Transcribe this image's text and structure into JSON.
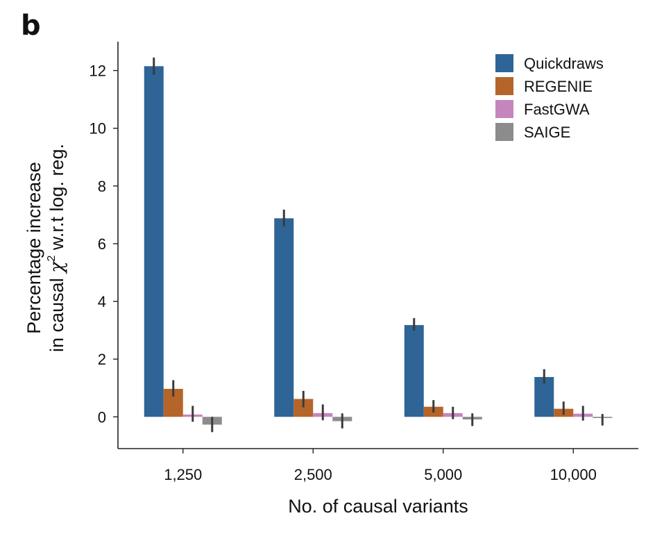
{
  "panel_label": "b",
  "chart_data": {
    "type": "bar",
    "categories": [
      "1,250",
      "2,500",
      "5,000",
      "10,000"
    ],
    "xlabel": "No. of causal variants",
    "ylabel_line1": "Percentage increase",
    "ylabel_line2_prefix": "in causal ",
    "ylabel_symbol": "χ",
    "ylabel_superscript": "2",
    "ylabel_line2_suffix": " w.r.t log. reg.",
    "ylim": [
      -1.1,
      13.0
    ],
    "yticks": [
      0,
      2,
      4,
      6,
      8,
      10,
      12
    ],
    "ytick_labels": [
      "0",
      "2",
      "4",
      "6",
      "8",
      "10",
      "12"
    ],
    "grid": false,
    "legend_position": "top-right",
    "series": [
      {
        "name": "Quickdraws",
        "color": "#2f6496",
        "values": [
          12.15,
          6.88,
          3.18,
          1.38
        ],
        "err_low": [
          11.85,
          6.6,
          2.98,
          1.15
        ],
        "err_high": [
          12.45,
          7.18,
          3.42,
          1.65
        ]
      },
      {
        "name": "REGENIE",
        "color": "#b5652a",
        "values": [
          0.97,
          0.62,
          0.35,
          0.28
        ],
        "err_low": [
          0.7,
          0.33,
          0.15,
          0.07
        ],
        "err_high": [
          1.27,
          0.9,
          0.58,
          0.53
        ]
      },
      {
        "name": "FastGWA",
        "color": "#c486bc",
        "values": [
          0.08,
          0.13,
          0.13,
          0.11
        ],
        "err_low": [
          -0.17,
          -0.12,
          -0.08,
          -0.13
        ],
        "err_high": [
          0.38,
          0.43,
          0.35,
          0.38
        ]
      },
      {
        "name": "SAIGE",
        "color": "#8c8c8c",
        "values": [
          -0.27,
          -0.15,
          -0.09,
          -0.04
        ],
        "err_low": [
          -0.53,
          -0.4,
          -0.32,
          -0.3
        ],
        "err_high": [
          0.0,
          0.12,
          0.12,
          0.1
        ]
      }
    ]
  }
}
